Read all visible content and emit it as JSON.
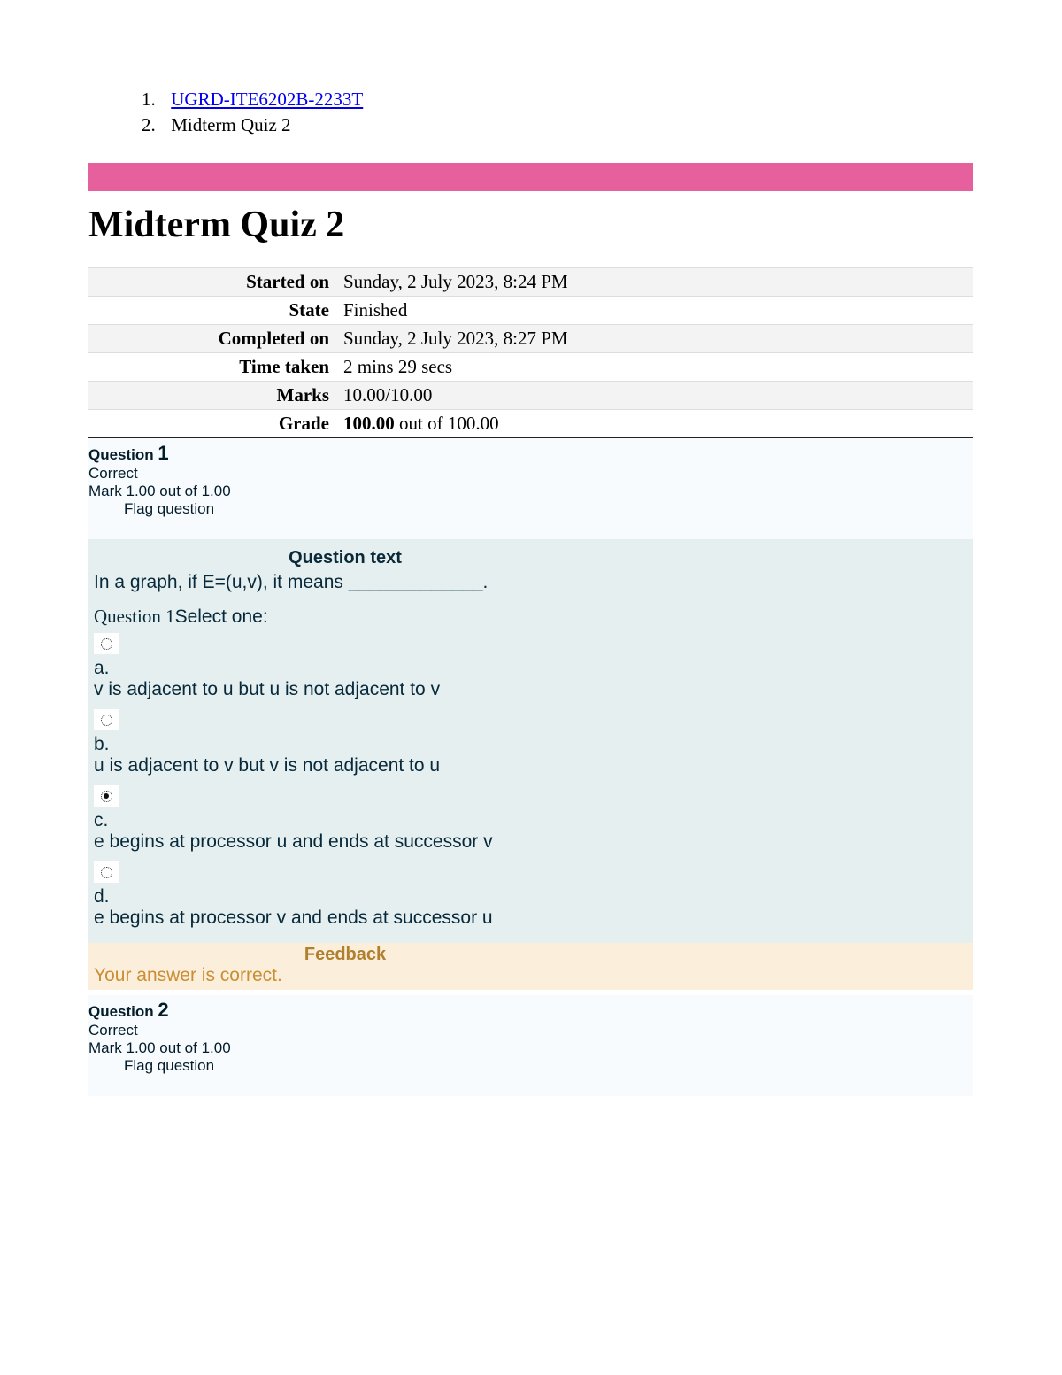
{
  "breadcrumb": {
    "items": [
      {
        "num": "1.",
        "label": "UGRD-ITE6202B-2233T",
        "is_link": true
      },
      {
        "num": "2.",
        "label": "Midterm Quiz 2",
        "is_link": false
      }
    ]
  },
  "colors": {
    "pink_bar": "#e6609e",
    "q_header_bg": "#f8fbfe",
    "q_body_bg": "#e5eff0",
    "feedback_bg": "#fbeedb",
    "feedback_text": "#ca8e33",
    "feedback_heading": "#b0802f",
    "link": "#0000ee"
  },
  "title": "Midterm Quiz 2",
  "summary": {
    "rows": [
      {
        "label": "Started on",
        "value_html": "Sunday, 2 July 2023, 8:24 PM"
      },
      {
        "label": "State",
        "value_html": "Finished"
      },
      {
        "label": "Completed on",
        "value_html": "Sunday, 2 July 2023, 8:27 PM"
      },
      {
        "label": "Time taken",
        "value_html": "2 mins 29 secs"
      },
      {
        "label": "Marks",
        "value_html": "10.00/10.00"
      },
      {
        "label": "Grade",
        "value_html": "<b>100.00</b> out of 100.00"
      }
    ]
  },
  "q1": {
    "header": {
      "label": "Question",
      "number": "1",
      "status": "Correct",
      "mark": "Mark 1.00 out of 1.00",
      "flag": "Flag question"
    },
    "body_heading": "Question text",
    "text": "In a graph, if E=(u,v), it means _____________.",
    "select_prefix": "Question 1",
    "select_label": "Select one:",
    "options": [
      {
        "letter": "a.",
        "text": "v is adjacent to u but u is not adjacent to v",
        "selected": false
      },
      {
        "letter": "b.",
        "text": "u is adjacent to v but v is not adjacent to u",
        "selected": false
      },
      {
        "letter": "c.",
        "text": "e begins at processor u and ends at successor v",
        "selected": true
      },
      {
        "letter": "d.",
        "text": "e begins at processor v and ends at successor u",
        "selected": false
      }
    ],
    "feedback_heading": "Feedback",
    "feedback_text": "Your answer is correct."
  },
  "q2": {
    "header": {
      "label": "Question",
      "number": "2",
      "status": "Correct",
      "mark": "Mark 1.00 out of 1.00",
      "flag": "Flag question"
    }
  }
}
